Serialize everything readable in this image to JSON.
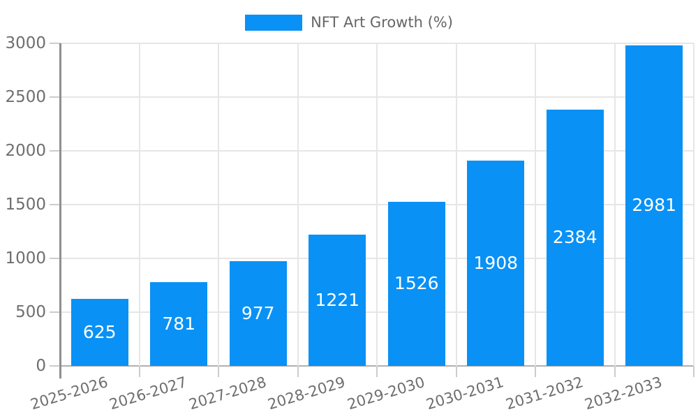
{
  "chart_data": {
    "type": "bar",
    "title": "",
    "legend": "NFT Art Growth (%)",
    "legend_position": "top-center",
    "categories": [
      "2025-2026",
      "2026-2027",
      "2027-2028",
      "2028-2029",
      "2029-2030",
      "2030-2031",
      "2031-2032",
      "2032-2033"
    ],
    "values": [
      625,
      781,
      977,
      1221,
      1526,
      1908,
      2384,
      2981
    ],
    "ylim": [
      0,
      3000
    ],
    "yticks": [
      0,
      500,
      1000,
      1500,
      2000,
      2500,
      3000
    ],
    "grid": true,
    "x_label_rotation_deg": -17,
    "value_labels": "centered-inside-bars"
  },
  "colors": {
    "bar": "#0991F5",
    "grid": "#e6e6e6",
    "axis_line": "#8f8f8f",
    "baseline": "#b0b0b0",
    "tick": "#cccccc",
    "tick_text": "#6e6e6e",
    "legend_text": "#666666",
    "bar_label_text": "#ffffff",
    "background": "#ffffff"
  }
}
